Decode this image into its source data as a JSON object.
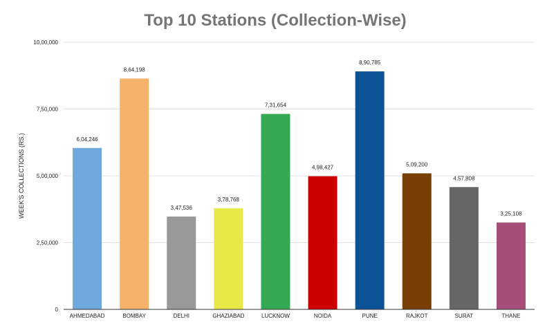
{
  "chart_data": {
    "type": "bar",
    "title": "Top 10 Stations (Collection-Wise)",
    "xlabel": "",
    "ylabel": "WEEK'S COLLECTIONS (RS.)",
    "categories": [
      "AHMEDABAD",
      "BOMBAY",
      "DELHI",
      "GHAZIABAD",
      "LUCKNOW",
      "NOIDA",
      "PUNE",
      "RAJKOT",
      "SURAT",
      "THANE"
    ],
    "values": [
      604246,
      864198,
      347536,
      378768,
      731654,
      498427,
      890785,
      509200,
      457808,
      325108
    ],
    "value_labels": [
      "6,04,246",
      "8,64,198",
      "3,47,536",
      "3,78,768",
      "7,31,654",
      "4,98,427",
      "8,90,785",
      "5,09,200",
      "4,57,808",
      "3,25,108"
    ],
    "colors": [
      "#6fa8dc",
      "#f6b26b",
      "#999999",
      "#e8e84a",
      "#34a853",
      "#cc0000",
      "#0b5394",
      "#783f04",
      "#666666",
      "#a64d79"
    ],
    "ylim": [
      0,
      1000000
    ],
    "yticks": [
      0,
      250000,
      500000,
      750000,
      1000000
    ],
    "ytick_labels": [
      "0",
      "2,50,000",
      "5,00,000",
      "7,50,000",
      "10,00,000"
    ],
    "grid": true,
    "legend": "none"
  }
}
